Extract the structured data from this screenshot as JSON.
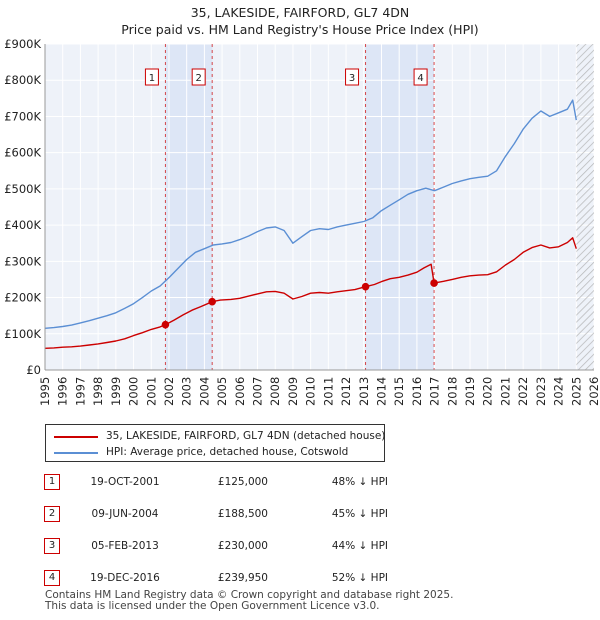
{
  "header": {
    "line1": "35, LAKESIDE, FAIRFORD, GL7 4DN",
    "line2": "Price paid vs. HM Land Registry's House Price Index (HPI)"
  },
  "chart_data": {
    "type": "line",
    "y_ticks": [
      {
        "value": 0,
        "label": "£0"
      },
      {
        "value": 100000,
        "label": "£100K"
      },
      {
        "value": 200000,
        "label": "£200K"
      },
      {
        "value": 300000,
        "label": "£300K"
      },
      {
        "value": 400000,
        "label": "£400K"
      },
      {
        "value": 500000,
        "label": "£500K"
      },
      {
        "value": 600000,
        "label": "£600K"
      },
      {
        "value": 700000,
        "label": "£700K"
      },
      {
        "value": 800000,
        "label": "£800K"
      },
      {
        "value": 900000,
        "label": "£900K"
      }
    ],
    "x_ticks": [
      "1995",
      "1996",
      "1997",
      "1998",
      "1999",
      "2000",
      "2001",
      "2002",
      "2003",
      "2004",
      "2005",
      "2006",
      "2007",
      "2008",
      "2009",
      "2010",
      "2011",
      "2012",
      "2013",
      "2014",
      "2015",
      "2016",
      "2017",
      "2018",
      "2019",
      "2020",
      "2021",
      "2022",
      "2023",
      "2024",
      "2025",
      "2026"
    ],
    "xlim": [
      1995,
      2026
    ],
    "ylim": [
      0,
      900000
    ],
    "grid": true,
    "shaded_periods": [
      [
        2001.8,
        2004.45
      ],
      [
        2013.1,
        2016.97
      ]
    ],
    "future_hatch_from": 2025.0,
    "series": [
      {
        "name": "35, LAKESIDE, FAIRFORD, GL7 4DN (detached house)",
        "color": "#cc0000",
        "points": [
          [
            1995.0,
            60000
          ],
          [
            1995.5,
            61000
          ],
          [
            1996.0,
            63000
          ],
          [
            1996.5,
            64000
          ],
          [
            1997.0,
            66000
          ],
          [
            1997.5,
            69000
          ],
          [
            1998.0,
            72000
          ],
          [
            1998.5,
            76000
          ],
          [
            1999.0,
            80000
          ],
          [
            1999.5,
            86000
          ],
          [
            2000.0,
            95000
          ],
          [
            2000.5,
            103000
          ],
          [
            2001.0,
            112000
          ],
          [
            2001.5,
            119000
          ],
          [
            2001.8,
            125000
          ],
          [
            2002.3,
            138000
          ],
          [
            2002.8,
            152000
          ],
          [
            2003.3,
            165000
          ],
          [
            2003.8,
            175000
          ],
          [
            2004.44,
            188500
          ],
          [
            2004.9,
            193000
          ],
          [
            2005.5,
            195000
          ],
          [
            2006.0,
            198000
          ],
          [
            2006.5,
            204000
          ],
          [
            2007.0,
            210000
          ],
          [
            2007.5,
            216000
          ],
          [
            2008.0,
            217000
          ],
          [
            2008.5,
            212000
          ],
          [
            2009.0,
            196000
          ],
          [
            2009.5,
            203000
          ],
          [
            2010.0,
            212000
          ],
          [
            2010.5,
            214000
          ],
          [
            2011.0,
            212000
          ],
          [
            2011.5,
            216000
          ],
          [
            2012.0,
            219000
          ],
          [
            2012.5,
            222000
          ],
          [
            2013.1,
            230000
          ],
          [
            2013.6,
            236000
          ],
          [
            2014.0,
            244000
          ],
          [
            2014.5,
            252000
          ],
          [
            2015.0,
            256000
          ],
          [
            2015.5,
            262000
          ],
          [
            2016.0,
            270000
          ],
          [
            2016.4,
            282000
          ],
          [
            2016.8,
            292000
          ],
          [
            2016.97,
            239950
          ],
          [
            2017.5,
            245000
          ],
          [
            2018.0,
            250000
          ],
          [
            2018.5,
            256000
          ],
          [
            2019.0,
            260000
          ],
          [
            2019.5,
            262000
          ],
          [
            2020.0,
            263000
          ],
          [
            2020.5,
            271000
          ],
          [
            2021.0,
            290000
          ],
          [
            2021.5,
            305000
          ],
          [
            2022.0,
            325000
          ],
          [
            2022.5,
            338000
          ],
          [
            2023.0,
            345000
          ],
          [
            2023.5,
            337000
          ],
          [
            2024.0,
            340000
          ],
          [
            2024.5,
            352000
          ],
          [
            2024.8,
            365000
          ],
          [
            2025.0,
            335000
          ]
        ]
      },
      {
        "name": "HPI: Average price, detached house, Cotswold",
        "color": "#5b8fd4",
        "points": [
          [
            1995.0,
            115000
          ],
          [
            1995.5,
            117000
          ],
          [
            1996.0,
            120000
          ],
          [
            1996.5,
            124000
          ],
          [
            1997.0,
            130000
          ],
          [
            1997.5,
            136000
          ],
          [
            1998.0,
            143000
          ],
          [
            1998.5,
            150000
          ],
          [
            1999.0,
            158000
          ],
          [
            1999.5,
            170000
          ],
          [
            2000.0,
            183000
          ],
          [
            2000.5,
            200000
          ],
          [
            2001.0,
            218000
          ],
          [
            2001.5,
            232000
          ],
          [
            2002.0,
            255000
          ],
          [
            2002.5,
            280000
          ],
          [
            2003.0,
            305000
          ],
          [
            2003.5,
            325000
          ],
          [
            2004.0,
            335000
          ],
          [
            2004.5,
            345000
          ],
          [
            2005.0,
            348000
          ],
          [
            2005.5,
            352000
          ],
          [
            2006.0,
            360000
          ],
          [
            2006.5,
            370000
          ],
          [
            2007.0,
            382000
          ],
          [
            2007.5,
            392000
          ],
          [
            2008.0,
            395000
          ],
          [
            2008.5,
            385000
          ],
          [
            2009.0,
            350000
          ],
          [
            2009.5,
            368000
          ],
          [
            2010.0,
            385000
          ],
          [
            2010.5,
            390000
          ],
          [
            2011.0,
            388000
          ],
          [
            2011.5,
            395000
          ],
          [
            2012.0,
            400000
          ],
          [
            2012.5,
            405000
          ],
          [
            2013.0,
            410000
          ],
          [
            2013.5,
            420000
          ],
          [
            2014.0,
            440000
          ],
          [
            2014.5,
            455000
          ],
          [
            2015.0,
            470000
          ],
          [
            2015.5,
            485000
          ],
          [
            2016.0,
            495000
          ],
          [
            2016.5,
            502000
          ],
          [
            2017.0,
            495000
          ],
          [
            2017.5,
            505000
          ],
          [
            2018.0,
            515000
          ],
          [
            2018.5,
            522000
          ],
          [
            2019.0,
            528000
          ],
          [
            2019.5,
            532000
          ],
          [
            2020.0,
            535000
          ],
          [
            2020.5,
            550000
          ],
          [
            2021.0,
            590000
          ],
          [
            2021.5,
            625000
          ],
          [
            2022.0,
            665000
          ],
          [
            2022.5,
            695000
          ],
          [
            2023.0,
            715000
          ],
          [
            2023.5,
            700000
          ],
          [
            2024.0,
            710000
          ],
          [
            2024.5,
            720000
          ],
          [
            2024.8,
            745000
          ],
          [
            2025.0,
            690000
          ]
        ]
      }
    ],
    "sales": [
      {
        "id": "1",
        "x": 2001.8,
        "y": 125000
      },
      {
        "id": "2",
        "x": 2004.44,
        "y": 188500
      },
      {
        "id": "3",
        "x": 2013.1,
        "y": 230000
      },
      {
        "id": "4",
        "x": 2016.97,
        "y": 239950
      }
    ]
  },
  "legend": {
    "property_label": "35, LAKESIDE, FAIRFORD, GL7 4DN (detached house)",
    "hpi_label": "HPI: Average price, detached house, Cotswold",
    "property_color": "#cc0000",
    "hpi_color": "#5b8fd4"
  },
  "sales_table": [
    {
      "num": "1",
      "date": "19-OCT-2001",
      "price": "£125,000",
      "hpi": "48% ↓ HPI"
    },
    {
      "num": "2",
      "date": "09-JUN-2004",
      "price": "£188,500",
      "hpi": "45% ↓ HPI"
    },
    {
      "num": "3",
      "date": "05-FEB-2013",
      "price": "£230,000",
      "hpi": "44% ↓ HPI"
    },
    {
      "num": "4",
      "date": "19-DEC-2016",
      "price": "£239,950",
      "hpi": "52% ↓ HPI"
    }
  ],
  "footer": {
    "line1": "Contains HM Land Registry data © Crown copyright and database right 2025.",
    "line2": "This data is licensed under the Open Government Licence v3.0."
  }
}
